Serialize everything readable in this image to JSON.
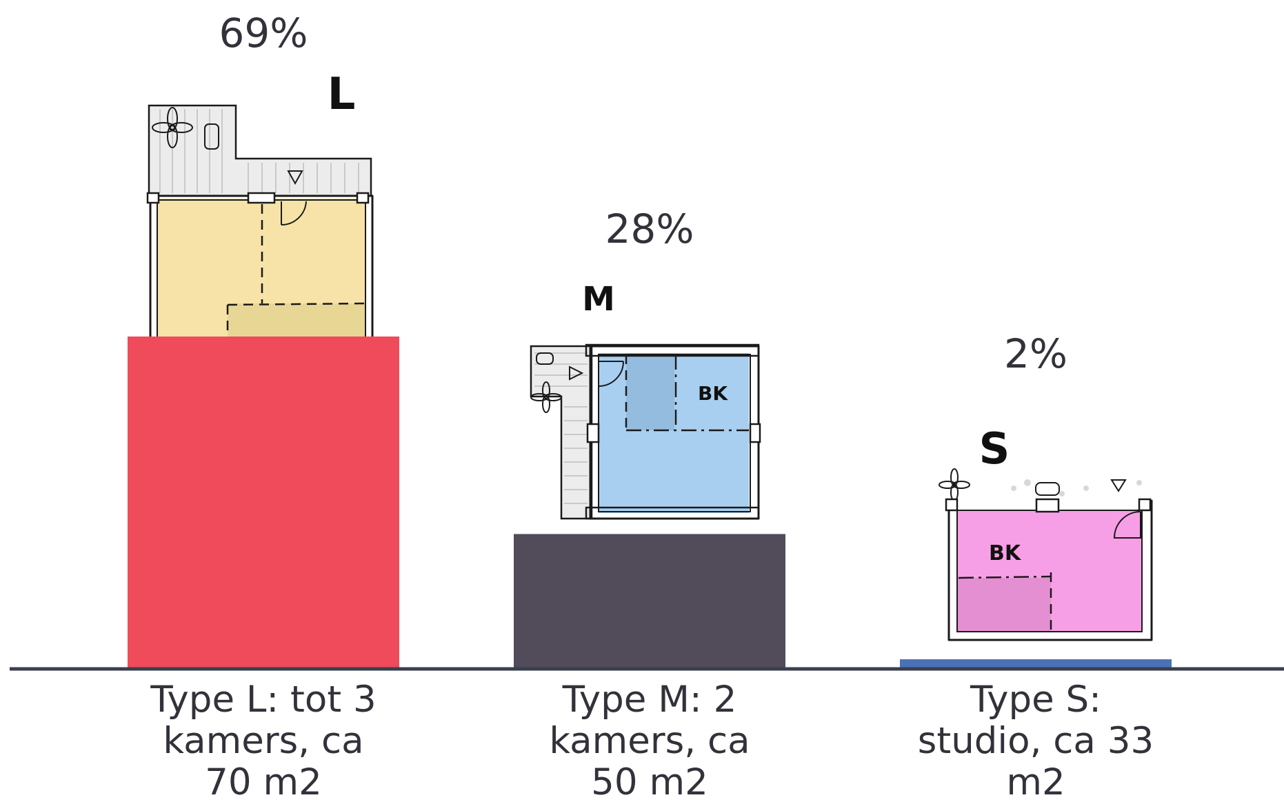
{
  "chart_data": {
    "type": "bar",
    "categories": [
      "Type L: tot 3 kamers, ca 70 m2",
      "Type M: 2 kamers, ca 50 m2",
      "Type S: studio, ca 33 m2"
    ],
    "category_lines": [
      [
        "Type L: tot 3",
        "kamers, ca",
        "70 m2"
      ],
      [
        "Type M: 2",
        "kamers, ca",
        "50 m2"
      ],
      [
        "Type S:",
        "studio, ca 33",
        "m2"
      ]
    ],
    "values": [
      69,
      28,
      2
    ],
    "value_labels": [
      "69%",
      "28%",
      "2%"
    ],
    "type_letters": [
      "L",
      "M",
      "S"
    ],
    "bar_colors": [
      "#ef4b5a",
      "#524b5a",
      "#4a72b8"
    ],
    "plan_colors": [
      "#f7e3a8",
      "#a9cff0",
      "#f79fe6"
    ],
    "plan_labels": [
      "",
      "BK",
      "BK"
    ],
    "title": "",
    "xlabel": "",
    "ylabel": "",
    "ylim": [
      0,
      69
    ],
    "grid": false,
    "legend": "none"
  }
}
